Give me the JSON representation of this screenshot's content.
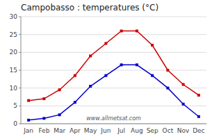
{
  "chart_data": {
    "type": "line",
    "title": "Campobasso : temperatures (°C)",
    "categories": [
      "Jan",
      "Feb",
      "Mar",
      "Apr",
      "May",
      "Jun",
      "Jul",
      "Aug",
      "Sep",
      "Oct",
      "Nov",
      "Dec"
    ],
    "series": [
      {
        "color": "#cc0000",
        "marker": "square",
        "values": [
          6.5,
          7.0,
          9.5,
          13.5,
          19.0,
          22.5,
          26.0,
          26.0,
          22.0,
          15.0,
          11.0,
          8.0
        ]
      },
      {
        "color": "#0000cc",
        "marker": "square",
        "values": [
          1.0,
          1.5,
          2.5,
          6.0,
          10.5,
          13.5,
          16.5,
          16.5,
          13.5,
          10.0,
          5.5,
          2.0
        ]
      }
    ],
    "ylim": [
      0,
      30
    ],
    "yticks": [
      0,
      5,
      10,
      15,
      20,
      25,
      30
    ],
    "grid": true,
    "annotations": [
      "www.allmetsat.com"
    ]
  }
}
